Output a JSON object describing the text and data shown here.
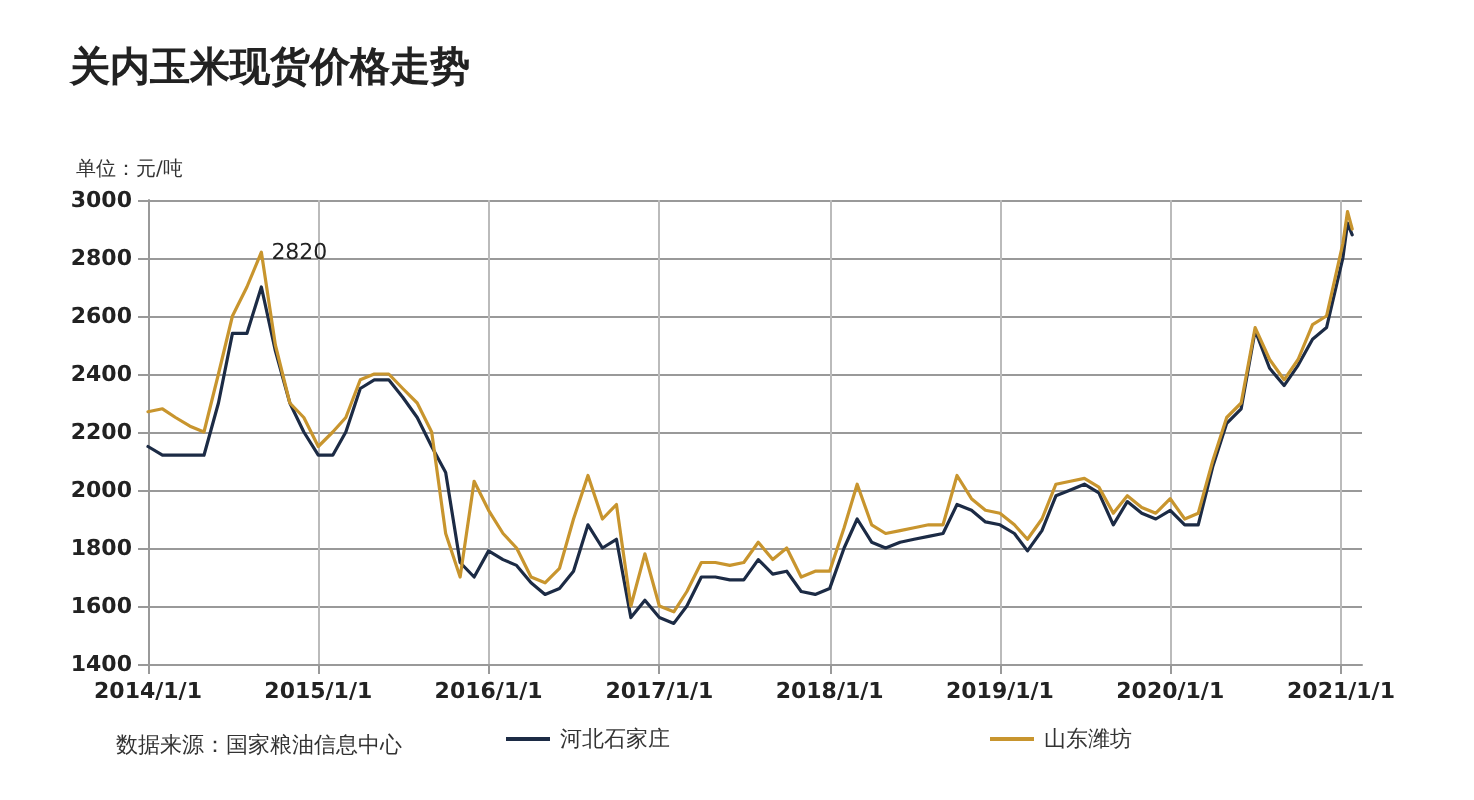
{
  "chart_data": {
    "type": "line",
    "title": "关内玉米现货价格走势",
    "ylabel": "单位：元/吨",
    "x": [
      "2014-01",
      "2014-02",
      "2014-03",
      "2014-04",
      "2014-05",
      "2014-06",
      "2014-07",
      "2014-08",
      "2014-09",
      "2014-10",
      "2014-11",
      "2014-12",
      "2015-01",
      "2015-02",
      "2015-03",
      "2015-04",
      "2015-05",
      "2015-06",
      "2015-07",
      "2015-08",
      "2015-09",
      "2015-10",
      "2015-11",
      "2015-12",
      "2016-01",
      "2016-02",
      "2016-03",
      "2016-04",
      "2016-05",
      "2016-06",
      "2016-07",
      "2016-08",
      "2016-09",
      "2016-10",
      "2016-11",
      "2016-12",
      "2017-01",
      "2017-02",
      "2017-03",
      "2017-04",
      "2017-05",
      "2017-06",
      "2017-07",
      "2017-08",
      "2017-09",
      "2017-10",
      "2017-11",
      "2017-12",
      "2018-01",
      "2018-02",
      "2018-03",
      "2018-04",
      "2018-05",
      "2018-06",
      "2018-07",
      "2018-08",
      "2018-09",
      "2018-10",
      "2018-11",
      "2018-12",
      "2019-01",
      "2019-02",
      "2019-03",
      "2019-04",
      "2019-05",
      "2019-06",
      "2019-07",
      "2019-08",
      "2019-09",
      "2019-10",
      "2019-11",
      "2019-12",
      "2020-01",
      "2020-02",
      "2020-03",
      "2020-04",
      "2020-05",
      "2020-06",
      "2020-07",
      "2020-08",
      "2020-09",
      "2020-10",
      "2020-11",
      "2020-12",
      "2021-01-05",
      "2021-01-15",
      "2021-01-25"
    ],
    "series": [
      {
        "name": "河北石家庄",
        "color": "#1c2b45",
        "values": [
          2150,
          2120,
          2120,
          2120,
          2120,
          2300,
          2540,
          2540,
          2700,
          2480,
          2300,
          2200,
          2120,
          2120,
          2200,
          2350,
          2380,
          2380,
          2320,
          2250,
          2150,
          2060,
          1750,
          1700,
          1790,
          1760,
          1740,
          1680,
          1640,
          1660,
          1720,
          1880,
          1800,
          1830,
          1560,
          1620,
          1560,
          1540,
          1600,
          1700,
          1700,
          1690,
          1690,
          1760,
          1710,
          1720,
          1650,
          1640,
          1660,
          1800,
          1900,
          1820,
          1800,
          1820,
          1830,
          1840,
          1850,
          1950,
          1930,
          1890,
          1880,
          1850,
          1790,
          1860,
          1980,
          2000,
          2020,
          1990,
          1880,
          1960,
          1920,
          1900,
          1930,
          1880,
          1880,
          2080,
          2230,
          2280,
          2550,
          2420,
          2360,
          2430,
          2520,
          2560,
          2800,
          2920,
          2880
        ]
      },
      {
        "name": "山东潍坊",
        "color": "#c8952e",
        "values": [
          2270,
          2280,
          2250,
          2220,
          2200,
          2400,
          2600,
          2700,
          2820,
          2500,
          2300,
          2250,
          2150,
          2200,
          2250,
          2380,
          2400,
          2400,
          2350,
          2300,
          2200,
          1850,
          1700,
          2030,
          1930,
          1850,
          1800,
          1700,
          1680,
          1730,
          1900,
          2050,
          1900,
          1950,
          1600,
          1780,
          1600,
          1580,
          1650,
          1750,
          1750,
          1740,
          1750,
          1820,
          1760,
          1800,
          1700,
          1720,
          1720,
          1870,
          2020,
          1880,
          1850,
          1860,
          1870,
          1880,
          1880,
          2050,
          1970,
          1930,
          1920,
          1880,
          1830,
          1900,
          2020,
          2030,
          2040,
          2010,
          1920,
          1980,
          1940,
          1920,
          1970,
          1900,
          1920,
          2100,
          2250,
          2300,
          2560,
          2450,
          2380,
          2450,
          2570,
          2600,
          2850,
          2960,
          2900
        ]
      }
    ],
    "xlim": [
      "2014-01-01",
      "2021-02-15"
    ],
    "xticks": [
      {
        "value": "2014-01-01",
        "label": "2014/1/1"
      },
      {
        "value": "2015-01-01",
        "label": "2015/1/1"
      },
      {
        "value": "2016-01-01",
        "label": "2016/1/1"
      },
      {
        "value": "2017-01-01",
        "label": "2017/1/1"
      },
      {
        "value": "2018-01-01",
        "label": "2018/1/1"
      },
      {
        "value": "2019-01-01",
        "label": "2019/1/1"
      },
      {
        "value": "2020-01-01",
        "label": "2020/1/1"
      },
      {
        "value": "2021-01-01",
        "label": "2021/1/1"
      }
    ],
    "ylim": [
      1400,
      3000
    ],
    "yticks": [
      1400,
      1600,
      1800,
      2000,
      2200,
      2400,
      2600,
      2800,
      3000
    ],
    "grid": true,
    "legend": "bottom",
    "marker": "none",
    "line_style": "solid",
    "annotations": [
      {
        "text": "2820",
        "x": "2014-09",
        "y": 2820
      },
      "数据来源：国家粮油信息中心"
    ]
  }
}
